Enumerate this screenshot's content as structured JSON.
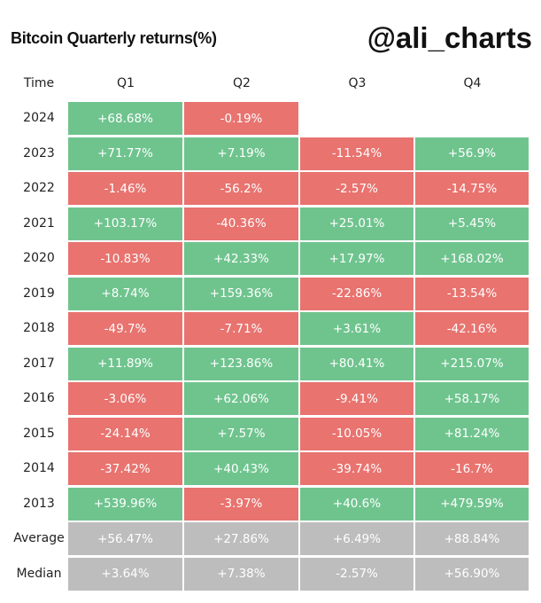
{
  "header": {
    "title": "Bitcoin Quarterly returns(%)",
    "watermark": "@ali_charts"
  },
  "colors": {
    "positive": "#6fc48e",
    "negative": "#e8736f",
    "summary": "#bdbdbd"
  },
  "chart_data": {
    "type": "table",
    "title": "Bitcoin Quarterly returns(%)",
    "corner_label": "Time",
    "columns": [
      "Q1",
      "Q2",
      "Q3",
      "Q4"
    ],
    "rows": [
      {
        "label": "2024",
        "kind": "year",
        "values": [
          "+68.68%",
          "-0.19%",
          null,
          null
        ]
      },
      {
        "label": "2023",
        "kind": "year",
        "values": [
          "+71.77%",
          "+7.19%",
          "-11.54%",
          "+56.9%"
        ]
      },
      {
        "label": "2022",
        "kind": "year",
        "values": [
          "-1.46%",
          "-56.2%",
          "-2.57%",
          "-14.75%"
        ]
      },
      {
        "label": "2021",
        "kind": "year",
        "values": [
          "+103.17%",
          "-40.36%",
          "+25.01%",
          "+5.45%"
        ]
      },
      {
        "label": "2020",
        "kind": "year",
        "values": [
          "-10.83%",
          "+42.33%",
          "+17.97%",
          "+168.02%"
        ]
      },
      {
        "label": "2019",
        "kind": "year",
        "values": [
          "+8.74%",
          "+159.36%",
          "-22.86%",
          "-13.54%"
        ]
      },
      {
        "label": "2018",
        "kind": "year",
        "values": [
          "-49.7%",
          "-7.71%",
          "+3.61%",
          "-42.16%"
        ]
      },
      {
        "label": "2017",
        "kind": "year",
        "values": [
          "+11.89%",
          "+123.86%",
          "+80.41%",
          "+215.07%"
        ]
      },
      {
        "label": "2016",
        "kind": "year",
        "values": [
          "-3.06%",
          "+62.06%",
          "-9.41%",
          "+58.17%"
        ]
      },
      {
        "label": "2015",
        "kind": "year",
        "values": [
          "-24.14%",
          "+7.57%",
          "-10.05%",
          "+81.24%"
        ]
      },
      {
        "label": "2014",
        "kind": "year",
        "values": [
          "-37.42%",
          "+40.43%",
          "-39.74%",
          "-16.7%"
        ]
      },
      {
        "label": "2013",
        "kind": "year",
        "values": [
          "+539.96%",
          "-3.97%",
          "+40.6%",
          "+479.59%"
        ]
      },
      {
        "label": "Average",
        "kind": "summary",
        "values": [
          "+56.47%",
          "+27.86%",
          "+6.49%",
          "+88.84%"
        ]
      },
      {
        "label": "Median",
        "kind": "summary",
        "values": [
          "+3.64%",
          "+7.38%",
          "-2.57%",
          "+56.90%"
        ]
      }
    ]
  }
}
